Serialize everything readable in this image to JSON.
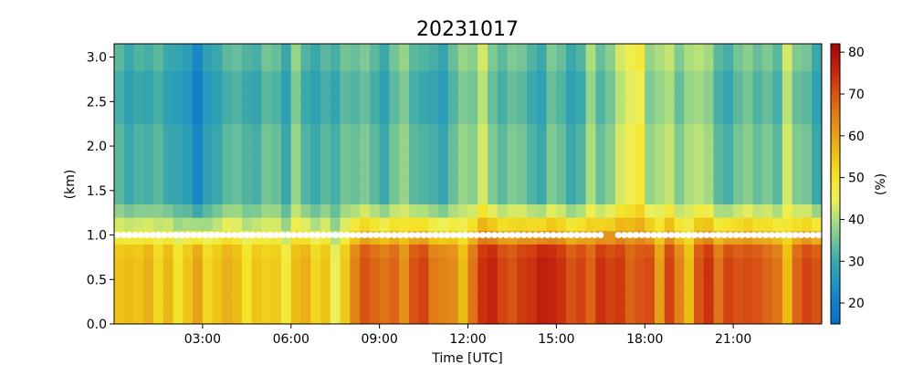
{
  "chart_data": {
    "type": "heatmap",
    "title": "20231017",
    "xlabel": "Time [UTC]",
    "ylabel": "(km)",
    "colorbar_label": "(%)",
    "colormap": "blue-teal-green-yellow-orange-red",
    "xlim": [
      0,
      24
    ],
    "ylim": [
      0,
      3.15
    ],
    "clim": [
      15,
      82
    ],
    "x_ticks": [
      {
        "value": 3,
        "label": "03:00"
      },
      {
        "value": 6,
        "label": "06:00"
      },
      {
        "value": 9,
        "label": "09:00"
      },
      {
        "value": 12,
        "label": "12:00"
      },
      {
        "value": 15,
        "label": "15:00"
      },
      {
        "value": 18,
        "label": "18:00"
      },
      {
        "value": 21,
        "label": "21:00"
      }
    ],
    "y_ticks": [
      {
        "value": 0.0,
        "label": "0.0"
      },
      {
        "value": 0.5,
        "label": "0.5"
      },
      {
        "value": 1.0,
        "label": "1.0"
      },
      {
        "value": 1.5,
        "label": "1.5"
      },
      {
        "value": 2.0,
        "label": "2.0"
      },
      {
        "value": 2.5,
        "label": "2.5"
      },
      {
        "value": 3.0,
        "label": "3.0"
      }
    ],
    "colorbar_ticks": [
      {
        "value": 20,
        "label": "20"
      },
      {
        "value": 30,
        "label": "30"
      },
      {
        "value": 40,
        "label": "40"
      },
      {
        "value": 50,
        "label": "50"
      },
      {
        "value": 60,
        "label": "60"
      },
      {
        "value": 70,
        "label": "70"
      },
      {
        "value": 80,
        "label": "80"
      }
    ],
    "x_bin_hours": 0.3333,
    "y_bin_km": 0.15,
    "profile_low": [
      55,
      56,
      55,
      58,
      52,
      57,
      50,
      55,
      60,
      52,
      55,
      58,
      56,
      50,
      55,
      53,
      54,
      48,
      56,
      58,
      52,
      55,
      45,
      54,
      64,
      70,
      68,
      66,
      68,
      62,
      70,
      72,
      65,
      64,
      63,
      56,
      66,
      74,
      76,
      72,
      70,
      73,
      74,
      77,
      76,
      74,
      70,
      72,
      68,
      74,
      72,
      73,
      68,
      70,
      71,
      60,
      72,
      64,
      56,
      70,
      74,
      66,
      72,
      70,
      71,
      70,
      68,
      66,
      56,
      68,
      72,
      70,
      70,
      66,
      68,
      62,
      70,
      69,
      68,
      58
    ],
    "profile_high": [
      33,
      30,
      32,
      31,
      33,
      30,
      29,
      27,
      22,
      28,
      30,
      33,
      34,
      32,
      31,
      35,
      34,
      30,
      38,
      32,
      30,
      33,
      31,
      35,
      34,
      36,
      33,
      30,
      35,
      38,
      33,
      32,
      31,
      29,
      34,
      38,
      37,
      43,
      36,
      33,
      36,
      35,
      32,
      30,
      36,
      34,
      30,
      32,
      40,
      34,
      37,
      43,
      46,
      48,
      38,
      40,
      42,
      36,
      40,
      41,
      39,
      33,
      31,
      35,
      37,
      34,
      36,
      33,
      43,
      36,
      35,
      30,
      31,
      33,
      46,
      40,
      36,
      31,
      39,
      34
    ],
    "inversion_height_km": 1.0,
    "inversion_times": [
      0.1,
      0.3,
      0.5,
      0.7,
      0.9,
      1.1,
      1.3,
      1.5,
      1.7,
      1.9,
      2.1,
      2.3,
      2.5,
      2.7,
      2.9,
      3.1,
      3.3,
      3.5,
      3.7,
      3.9,
      4.1,
      4.3,
      4.5,
      4.7,
      4.9,
      5.1,
      5.3,
      5.5,
      5.7,
      5.9,
      6.1,
      6.3,
      6.5,
      6.7,
      6.9,
      7.1,
      7.3,
      7.5,
      7.7,
      7.9,
      8.1,
      8.3,
      8.5,
      8.7,
      8.9,
      9.1,
      9.3,
      9.5,
      9.7,
      9.9,
      10.1,
      10.3,
      10.5,
      10.7,
      10.9,
      11.1,
      11.3,
      11.5,
      11.7,
      11.9,
      12.1,
      12.3,
      12.5,
      12.7,
      12.9,
      13.1,
      13.3,
      13.5,
      13.7,
      13.9,
      14.1,
      14.3,
      14.5,
      14.7,
      14.9,
      15.1,
      15.3,
      15.5,
      15.7,
      15.9,
      16.1,
      16.3,
      16.5,
      17.1,
      17.3,
      17.5,
      17.7,
      17.9,
      18.1,
      18.3,
      18.5,
      18.7,
      18.9,
      19.1,
      19.3,
      19.5,
      19.7,
      19.9,
      20.1,
      20.3,
      20.5,
      20.7,
      20.9,
      21.1,
      21.3,
      21.5,
      21.7,
      21.9,
      22.1,
      22.3,
      22.5,
      22.7,
      22.9,
      23.1,
      23.3,
      23.5,
      23.7,
      23.9
    ]
  }
}
